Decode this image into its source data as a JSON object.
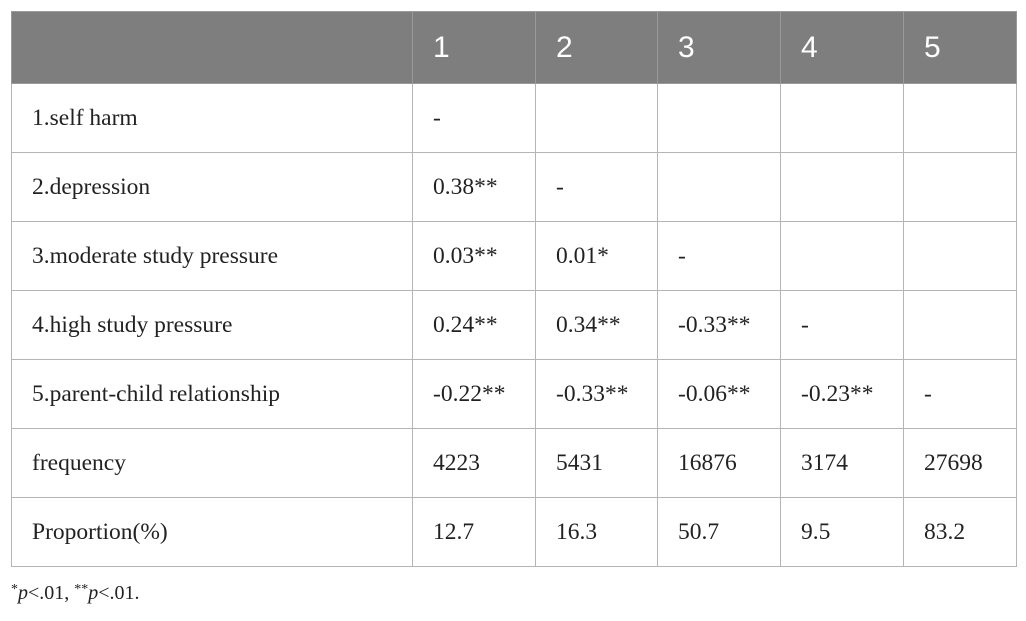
{
  "table": {
    "headers": [
      "",
      "1",
      "2",
      "3",
      "4",
      "5"
    ],
    "rows": [
      [
        "1.self harm",
        "-",
        "",
        "",
        "",
        ""
      ],
      [
        "2.depression",
        "0.38**",
        "-",
        "",
        "",
        ""
      ],
      [
        "3.moderate study pressure",
        "0.03**",
        "0.01*",
        "-",
        "",
        ""
      ],
      [
        "4.high study pressure",
        "0.24**",
        "0.34**",
        "-0.33**",
        "-",
        ""
      ],
      [
        "5.parent-child relationship",
        "-0.22**",
        "-0.33**",
        "-0.06**",
        "-0.23**",
        "-"
      ],
      [
        "frequency",
        "4223",
        "5431",
        "16876",
        "3174",
        "27698"
      ],
      [
        "Proportion(%)",
        "12.7",
        "16.3",
        "50.7",
        "9.5",
        "83.2"
      ]
    ]
  },
  "footnote": {
    "mark1": "*",
    "p1": "p",
    "text1": "<.01, ",
    "mark2": "**",
    "p2": "p",
    "text2": "<.01."
  }
}
